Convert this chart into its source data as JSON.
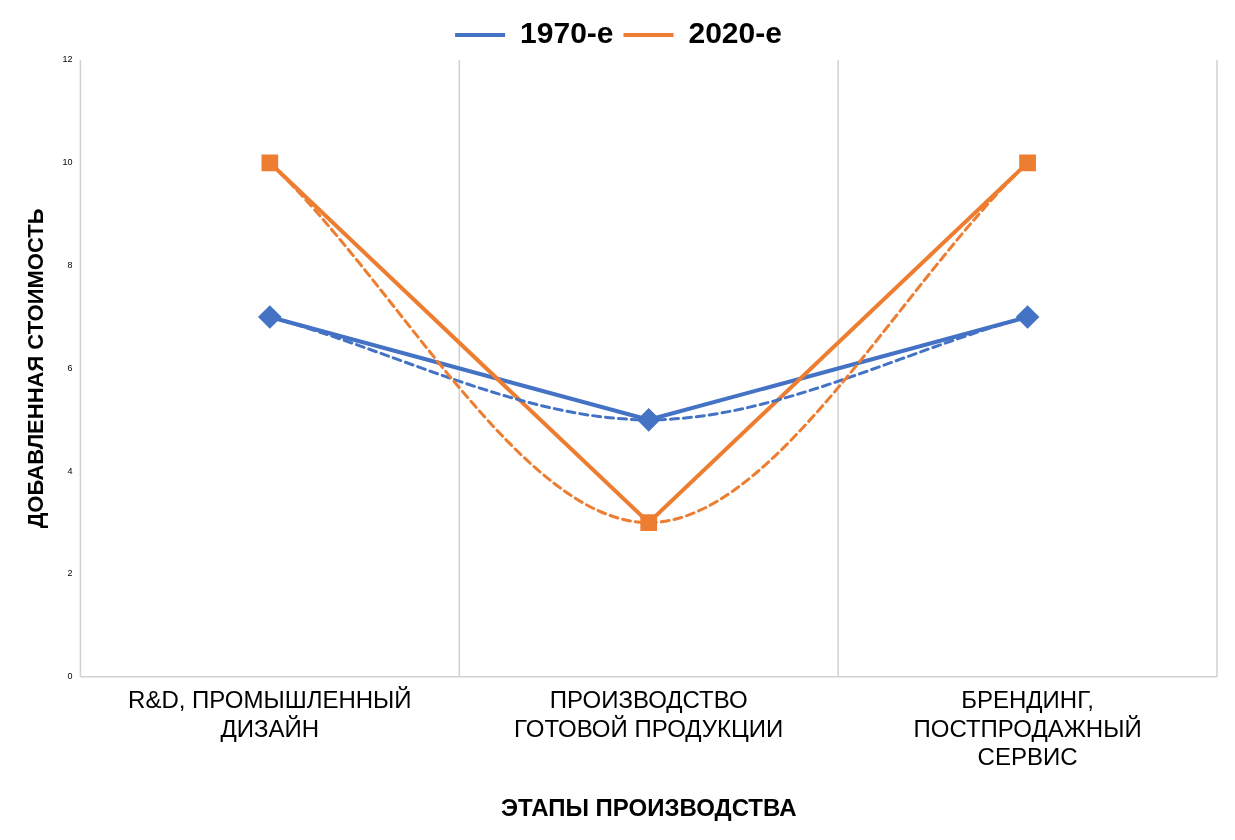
{
  "chart_data": {
    "type": "line",
    "xlabel": "ЭТАПЫ ПРОИЗВОДСТВА",
    "ylabel": "ДОБАВЛЕННАЯ СТОИМОСТЬ",
    "categories": [
      "R&D, ПРОМЫШЛЕННЫЙ ДИЗАЙН",
      "ПРОИЗВОДСТВО ГОТОВОЙ ПРОДУКЦИИ",
      "БРЕНДИНГ, ПОСТПРОДАЖНЫЙ СЕРВИС"
    ],
    "series": [
      {
        "name": "1970-е",
        "color": "#4472c4",
        "values": [
          7,
          5,
          7
        ],
        "marker": "diamond",
        "line_style": "solid"
      },
      {
        "name": "2020-е",
        "color": "#ed7d31",
        "values": [
          10,
          3,
          10
        ],
        "marker": "square",
        "line_style": "solid"
      },
      {
        "type": "line",
        "color": "#4472c4",
        "x": [
          "R&D, ПРОМЫШЛЕННЫЙ ДИЗАЙН",
          "ПРОИЗВОДСТВО ГОТОВОЙ ПРОДУКЦИИ",
          "БРЕНДИНГ, ПОСТПРОДАЖНЫЙ СЕРВИС"
        ],
        "values": [
          7,
          5,
          7
        ],
        "marker": "none",
        "line_style": "dashed"
      },
      {
        "type": "line",
        "color": "#ed7d31",
        "x": [
          "R&D, ПРОМЫШЛЕННЫЙ ДИЗАЙН",
          "ПРОИЗВОДСТВО ГОТОВОЙ ПРОДУКЦИИ",
          "БРЕНДИНГ, ПОСТПРОДАЖНЫЙ СЕРВИС"
        ],
        "values": [
          10,
          3,
          10
        ],
        "marker": "none",
        "line_style": "dashed"
      }
    ],
    "ylim": [
      0,
      12
    ],
    "yticks": [
      0,
      2,
      4,
      6,
      8,
      10,
      12
    ],
    "grid": "x",
    "legend": "top"
  }
}
